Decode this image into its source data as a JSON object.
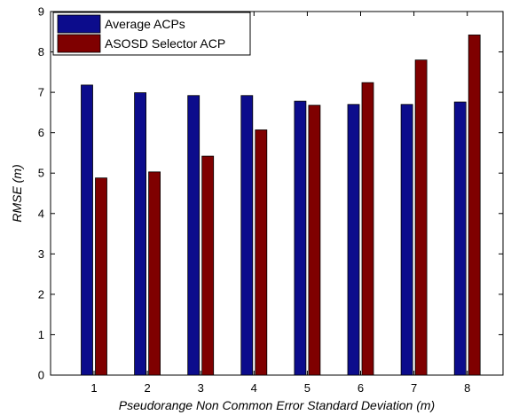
{
  "chart_data": {
    "type": "bar",
    "title": "",
    "xlabel": "Pseudorange Non Common Error Standard Deviation (m)",
    "ylabel": "RMSE (m)",
    "categories": [
      "1",
      "2",
      "3",
      "4",
      "5",
      "6",
      "7",
      "8"
    ],
    "ylim": [
      0,
      9
    ],
    "yticks": [
      "0",
      "1",
      "2",
      "3",
      "4",
      "5",
      "6",
      "7",
      "8",
      "9"
    ],
    "grid": false,
    "legend_position": "top-left",
    "series": [
      {
        "name": "Average ACPs",
        "color": "#0c0c8c",
        "values": [
          7.18,
          6.99,
          6.92,
          6.92,
          6.78,
          6.7,
          6.7,
          6.76
        ]
      },
      {
        "name": "ASOSD Selector ACP",
        "color": "#7f0000",
        "values": [
          4.88,
          5.03,
          5.42,
          6.07,
          6.68,
          7.24,
          7.8,
          8.42
        ]
      }
    ]
  }
}
